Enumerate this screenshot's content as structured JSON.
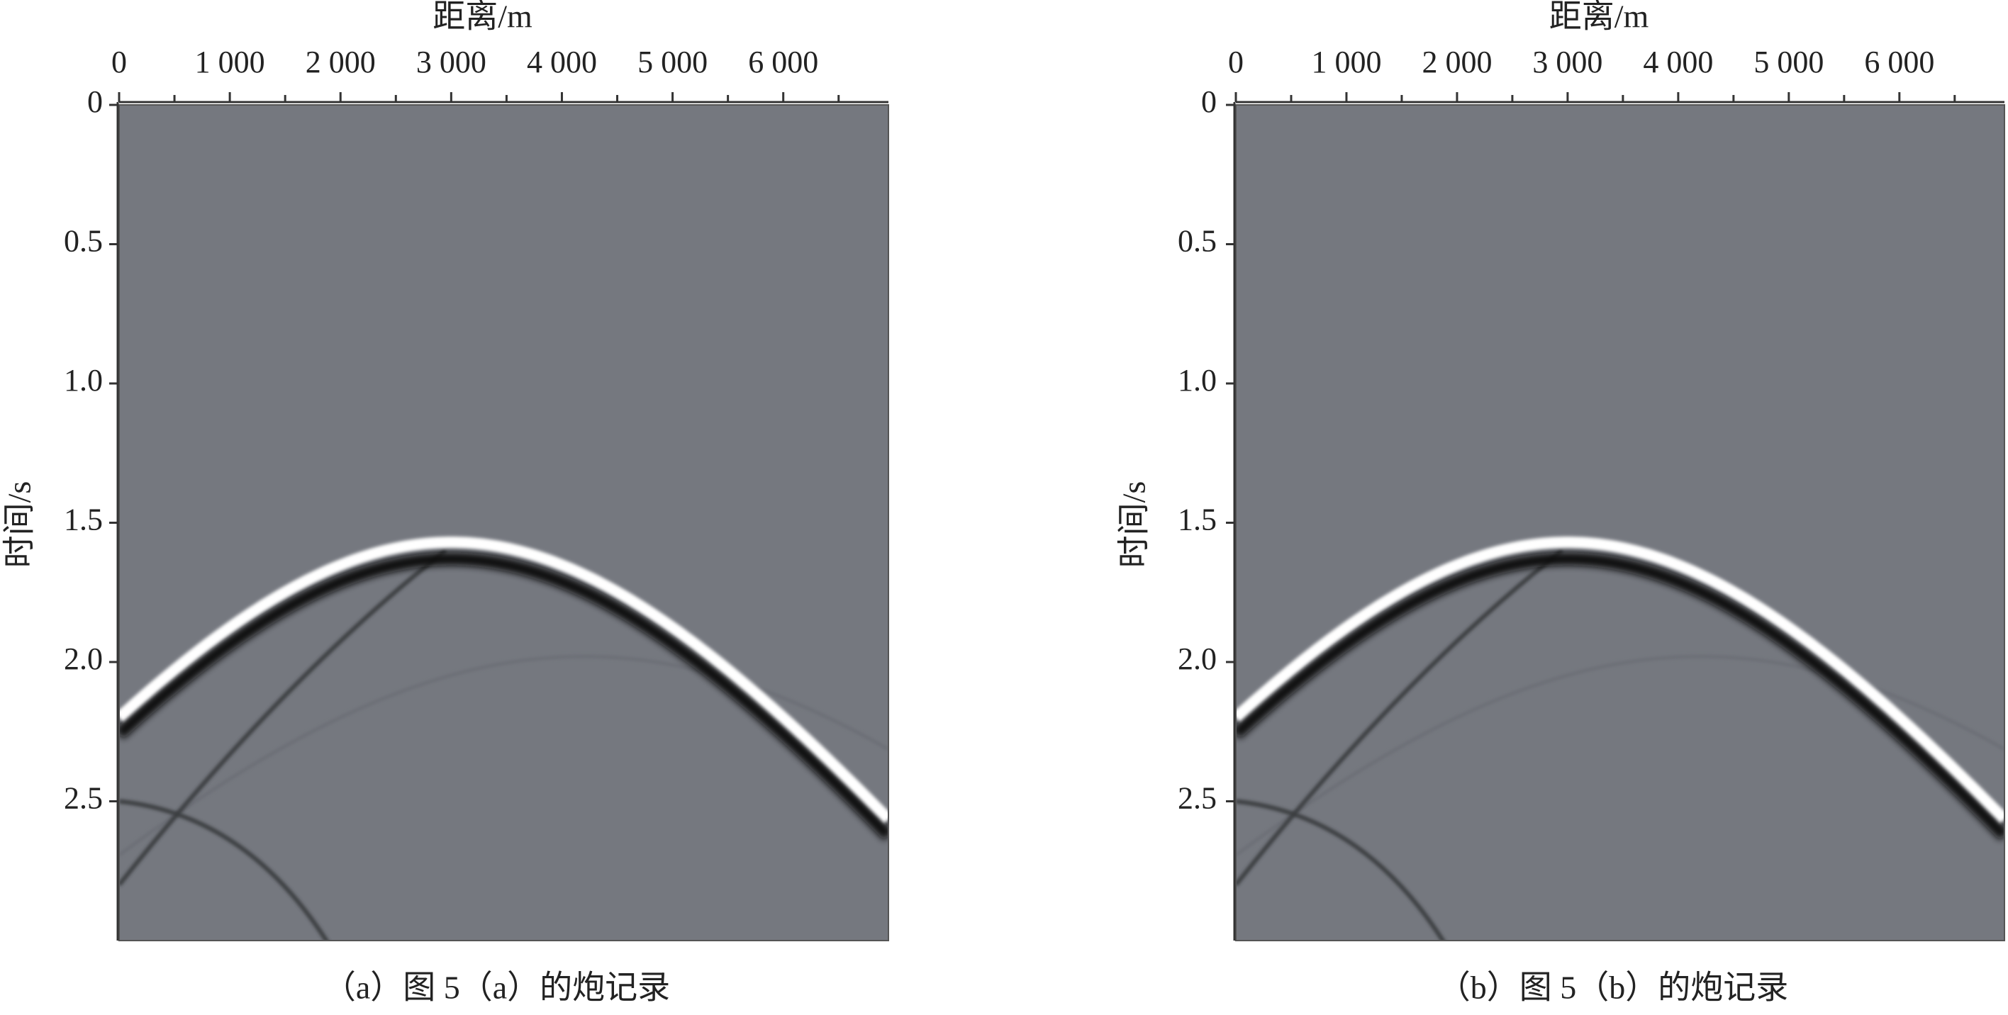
{
  "chart_data": [
    {
      "type": "image",
      "x_label": "距离/m",
      "y_label": "时间/s",
      "caption": "（a）图 5（a）的炮记录",
      "xlim": [
        0,
        6950
      ],
      "ylim": [
        0,
        3.0
      ],
      "xticks": [
        0,
        {
          "value": 1000,
          "label": "1 000"
        },
        {
          "value": 2000,
          "label": "2 000"
        },
        {
          "value": 3000,
          "label": "3 000"
        },
        {
          "value": 4000,
          "label": "4 000"
        },
        {
          "value": 5000,
          "label": "5 000"
        },
        {
          "value": 6000,
          "label": "6 000"
        }
      ],
      "xminor_ticks": [
        500,
        1500,
        2500,
        3500,
        4500,
        5500,
        6500
      ],
      "yticks": [
        0,
        0.5,
        {
          "value": 1.0,
          "label": "1.0"
        },
        1.5,
        {
          "value": 2.0,
          "label": "2.0"
        },
        2.5
      ],
      "color": "#75787f"
    },
    {
      "type": "image",
      "x_label": "距离/m",
      "y_label": "时间/s",
      "caption": "（b）图 5（b）的炮记录",
      "xlim": [
        0,
        6950
      ],
      "ylim": [
        0,
        3.0
      ],
      "xticks": [
        0,
        {
          "value": 1000,
          "label": "1 000"
        },
        {
          "value": 2000,
          "label": "2 000"
        },
        {
          "value": 3000,
          "label": "3 000"
        },
        {
          "value": 4000,
          "label": "4 000"
        },
        {
          "value": 5000,
          "label": "5 000"
        },
        {
          "value": 6000,
          "label": "6 000"
        }
      ],
      "xminor_ticks": [
        500,
        1500,
        2500,
        3500,
        4500,
        5500,
        6500
      ],
      "yticks": [
        0,
        0.5,
        {
          "value": 1.0,
          "label": "1.0"
        },
        1.5,
        {
          "value": 2.0,
          "label": "2.0"
        },
        2.5
      ],
      "color": "#75787f"
    }
  ]
}
